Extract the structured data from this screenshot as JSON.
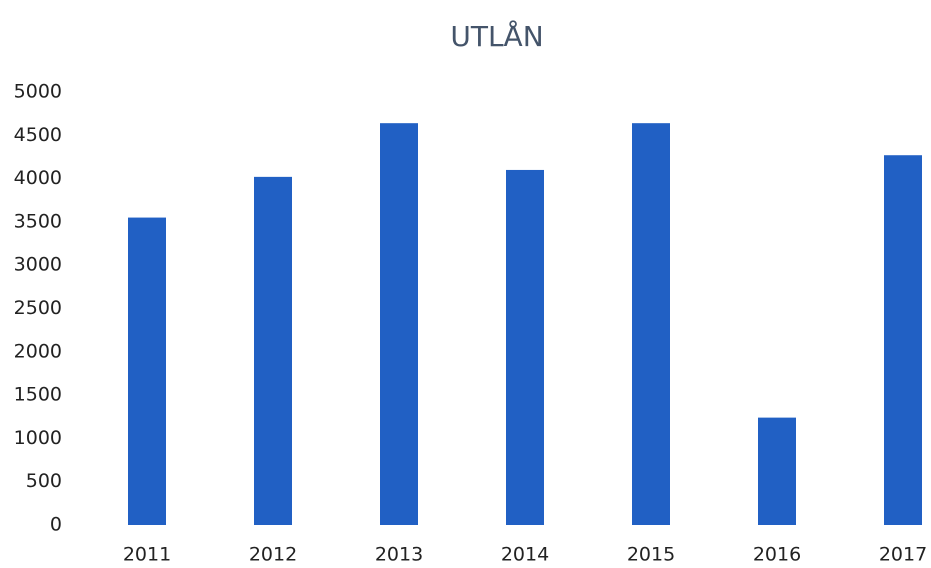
{
  "chart_data": {
    "type": "bar",
    "title": "UTLÅN",
    "categories": [
      "2011",
      "2012",
      "2013",
      "2014",
      "2015",
      "2016",
      "2017"
    ],
    "values": [
      3550,
      4020,
      4640,
      4100,
      4640,
      1240,
      4270
    ],
    "color": "#2160c4",
    "ylim": [
      0,
      5000
    ],
    "yticks": [
      0,
      500,
      1000,
      1500,
      2000,
      2500,
      3000,
      3500,
      4000,
      4500,
      5000
    ],
    "grid": false
  }
}
